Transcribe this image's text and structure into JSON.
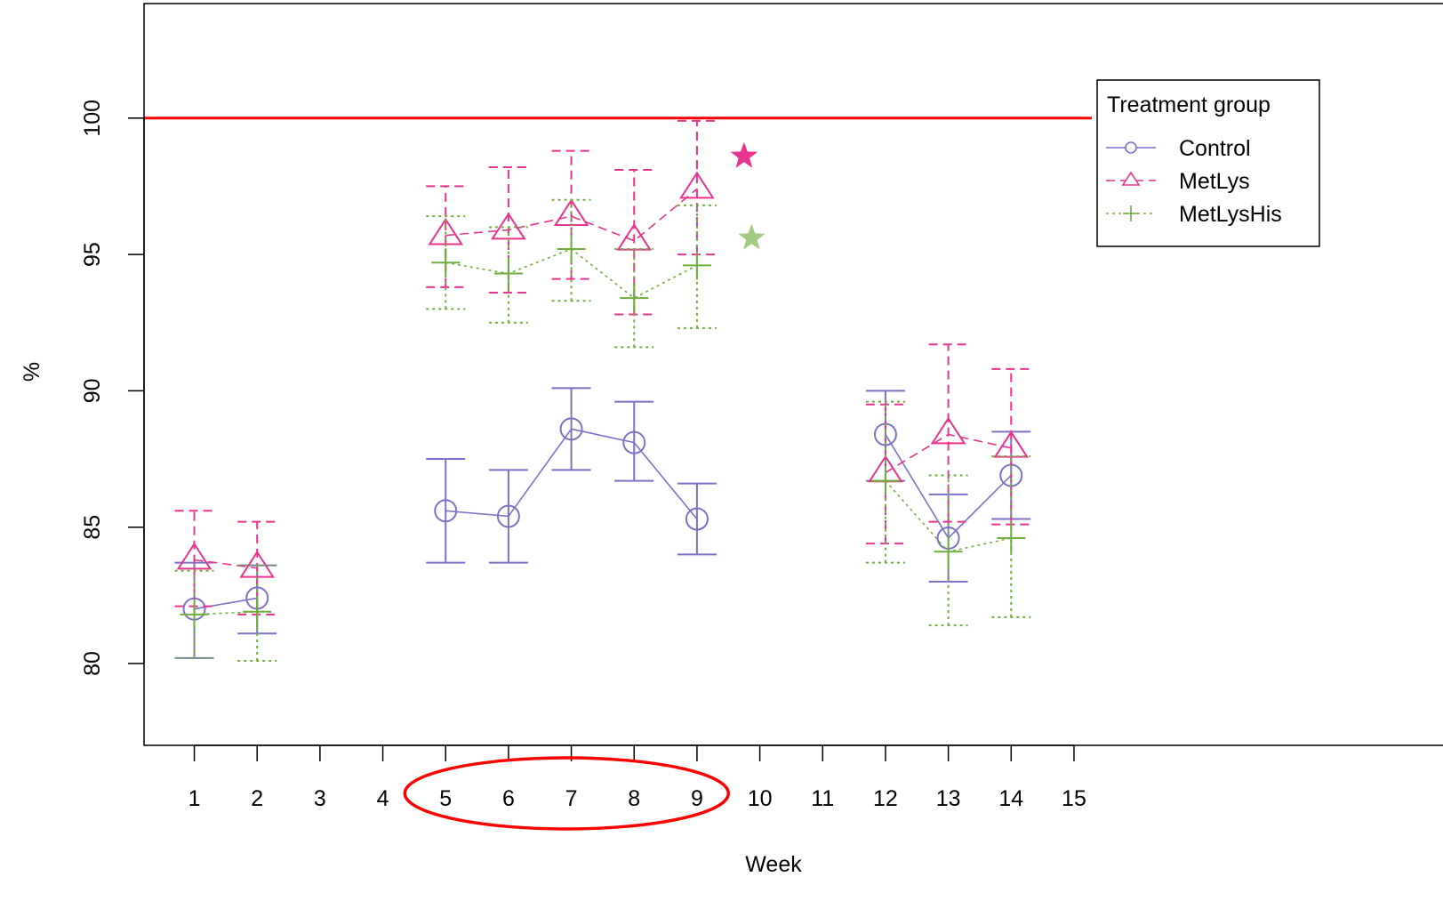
{
  "chart_data": {
    "type": "line",
    "title": "",
    "xlabel": "Week",
    "ylabel": "%",
    "xlim": [
      0.2,
      21
    ],
    "ylim": [
      77,
      104.2
    ],
    "x_ticks": [
      1,
      2,
      3,
      4,
      5,
      6,
      7,
      8,
      9,
      10,
      11,
      12,
      13,
      14,
      15
    ],
    "x_tick_labels": [
      "1",
      "2",
      "3",
      "4",
      "5",
      "6",
      "7",
      "8",
      "9",
      "10",
      "11",
      "12",
      "13",
      "14",
      "15"
    ],
    "y_ticks": [
      80,
      85,
      90,
      95,
      100
    ],
    "y_tick_labels": [
      "80",
      "85",
      "90",
      "95",
      "100"
    ],
    "grid": false,
    "legend": {
      "title": "Treatment group",
      "placement": "top-right"
    },
    "reference_line": {
      "y": 100,
      "color": "#ff0000"
    },
    "series": [
      {
        "name": "Control",
        "color": "#7b72c6",
        "marker": "circle",
        "line_style": "solid",
        "segments": [
          [
            {
              "x": 1,
              "y": 82.0,
              "lo": 80.2,
              "hi": 83.7
            },
            {
              "x": 2,
              "y": 82.4,
              "lo": 81.1,
              "hi": 83.6
            }
          ],
          [
            {
              "x": 5,
              "y": 85.6,
              "lo": 83.7,
              "hi": 87.5
            },
            {
              "x": 6,
              "y": 85.4,
              "lo": 83.7,
              "hi": 87.1
            },
            {
              "x": 7,
              "y": 88.6,
              "lo": 87.1,
              "hi": 90.1
            },
            {
              "x": 8,
              "y": 88.1,
              "lo": 86.7,
              "hi": 89.6
            },
            {
              "x": 9,
              "y": 85.3,
              "lo": 84.0,
              "hi": 86.6
            }
          ],
          [
            {
              "x": 12,
              "y": 88.4,
              "lo": 86.7,
              "hi": 90.0
            },
            {
              "x": 13,
              "y": 84.6,
              "lo": 83.0,
              "hi": 86.2
            },
            {
              "x": 14,
              "y": 86.9,
              "lo": 85.3,
              "hi": 88.5
            }
          ]
        ]
      },
      {
        "name": "MetLys",
        "color": "#e8338f",
        "marker": "triangle",
        "line_style": "dashed",
        "segments": [
          [
            {
              "x": 1,
              "y": 83.8,
              "lo": 82.1,
              "hi": 85.6
            },
            {
              "x": 2,
              "y": 83.5,
              "lo": 81.8,
              "hi": 85.2
            }
          ],
          [
            {
              "x": 5,
              "y": 95.7,
              "lo": 93.8,
              "hi": 97.5
            },
            {
              "x": 6,
              "y": 95.9,
              "lo": 93.6,
              "hi": 98.2
            },
            {
              "x": 7,
              "y": 96.4,
              "lo": 94.1,
              "hi": 98.8
            },
            {
              "x": 8,
              "y": 95.5,
              "lo": 92.8,
              "hi": 98.1
            },
            {
              "x": 9,
              "y": 97.4,
              "lo": 95.0,
              "hi": 99.9
            }
          ],
          [
            {
              "x": 12,
              "y": 87.0,
              "lo": 84.4,
              "hi": 89.5
            },
            {
              "x": 13,
              "y": 88.4,
              "lo": 85.2,
              "hi": 91.7
            },
            {
              "x": 14,
              "y": 87.9,
              "lo": 85.1,
              "hi": 90.8
            }
          ]
        ]
      },
      {
        "name": "MetLysHis",
        "color": "#6fae3c",
        "marker": "plus",
        "line_style": "dotted",
        "segments": [
          [
            {
              "x": 1,
              "y": 81.8,
              "lo": 80.2,
              "hi": 83.4
            },
            {
              "x": 2,
              "y": 81.9,
              "lo": 80.1,
              "hi": 83.6
            }
          ],
          [
            {
              "x": 5,
              "y": 94.7,
              "lo": 93.0,
              "hi": 96.4
            },
            {
              "x": 6,
              "y": 94.3,
              "lo": 92.5,
              "hi": 96.0
            },
            {
              "x": 7,
              "y": 95.2,
              "lo": 93.3,
              "hi": 97.0
            },
            {
              "x": 8,
              "y": 93.4,
              "lo": 91.6,
              "hi": 95.2
            },
            {
              "x": 9,
              "y": 94.6,
              "lo": 92.3,
              "hi": 96.8
            }
          ],
          [
            {
              "x": 12,
              "y": 86.7,
              "lo": 83.7,
              "hi": 89.6
            },
            {
              "x": 13,
              "y": 84.1,
              "lo": 81.4,
              "hi": 86.9
            },
            {
              "x": 14,
              "y": 84.6,
              "lo": 81.7,
              "hi": 87.6
            }
          ]
        ]
      }
    ],
    "annotations": {
      "stars": [
        {
          "x": 9.75,
          "y": 98.6,
          "color": "#e8338f"
        },
        {
          "x": 9.87,
          "y": 95.6,
          "color": "#a3cb80"
        }
      ],
      "highlight_ellipse": {
        "x_from": 4.35,
        "x_to": 9.5,
        "color": "#ff0000"
      }
    }
  }
}
